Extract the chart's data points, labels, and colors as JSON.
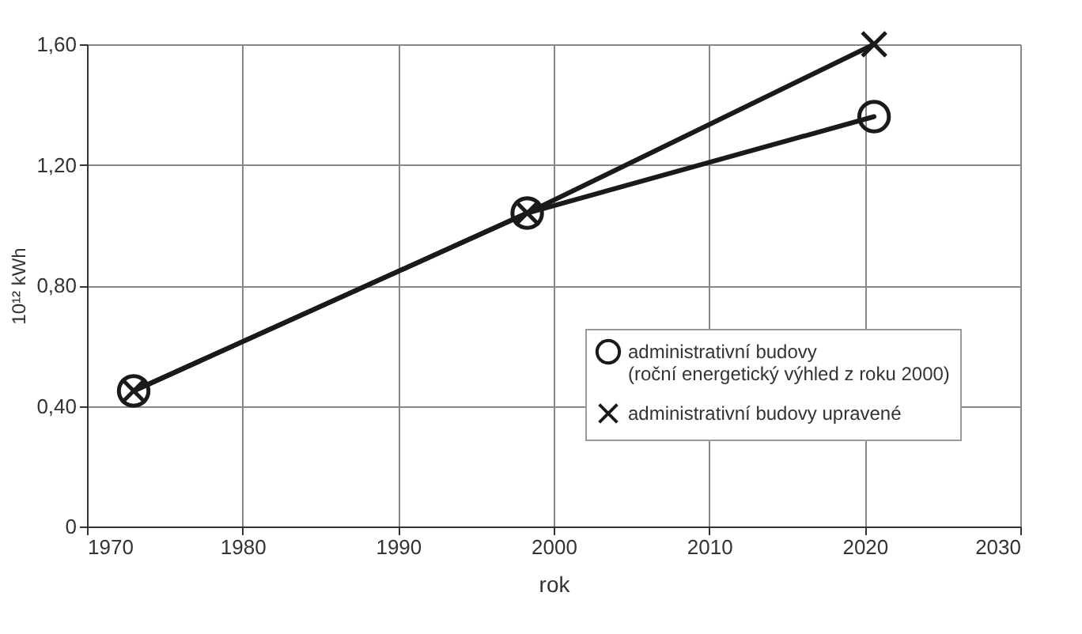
{
  "chart_data": {
    "type": "line",
    "xlabel": "rok",
    "ylabel": "10¹² kWh",
    "xlim": [
      1970,
      2030
    ],
    "xticks": [
      1970,
      1980,
      1990,
      2000,
      2010,
      2020,
      2030
    ],
    "ylim": [
      0,
      1.6
    ],
    "yticks": [
      0,
      {
        "value": 0.4,
        "label": "0,40"
      },
      {
        "value": 0.8,
        "label": "0,80"
      },
      {
        "value": 1.2,
        "label": "1,20"
      },
      {
        "value": 1.6,
        "label": "1,60"
      }
    ],
    "grid": true,
    "legend": "right",
    "line_style": "solid",
    "series": [
      {
        "name": "administrativní budovy\n(roční energetický výhled z roku 2000)",
        "color": "#1a1a1a",
        "marker": "circle",
        "x": [
          1973,
          1998.3,
          2020.6
        ],
        "values": [
          0.45,
          1.04,
          1.36
        ]
      },
      {
        "name": "administrativní budovy upravené",
        "color": "#1a1a1a",
        "marker": "cross",
        "x": [
          1973,
          1998.3,
          2020.6
        ],
        "values": [
          0.45,
          1.04,
          1.6
        ]
      }
    ]
  }
}
